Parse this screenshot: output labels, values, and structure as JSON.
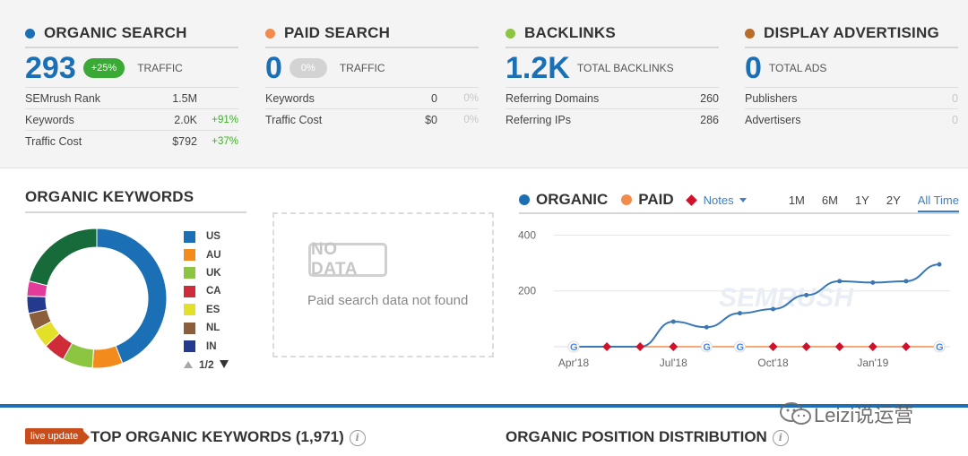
{
  "colors": {
    "organic": "#1a6fb5",
    "paid": "#f28b4b",
    "backlinks": "#8cc641",
    "display": "#b86d2c",
    "green_pill": "#3aa935",
    "grey_pill": "#d3d3d3",
    "notes": "#d0112b"
  },
  "cards": {
    "organic": {
      "title": "ORGANIC SEARCH",
      "big": "293",
      "pill": "+25%",
      "label": "TRAFFIC",
      "rows": [
        {
          "label": "SEMrush Rank",
          "value": "1.5M",
          "change": ""
        },
        {
          "label": "Keywords",
          "value": "2.0K",
          "change": "+91%"
        },
        {
          "label": "Traffic Cost",
          "value": "$792",
          "change": "+37%"
        }
      ]
    },
    "paid": {
      "title": "PAID SEARCH",
      "big": "0",
      "pill": "0%",
      "label": "TRAFFIC",
      "rows": [
        {
          "label": "Keywords",
          "value": "0",
          "change": "0%"
        },
        {
          "label": "Traffic Cost",
          "value": "$0",
          "change": "0%"
        }
      ]
    },
    "backlinks": {
      "title": "BACKLINKS",
      "big": "1.2K",
      "label": "TOTAL BACKLINKS",
      "rows": [
        {
          "label": "Referring Domains",
          "value": "260"
        },
        {
          "label": "Referring IPs",
          "value": "286"
        }
      ]
    },
    "display": {
      "title": "DISPLAY ADVERTISING",
      "big": "0",
      "label": "TOTAL ADS",
      "rows": [
        {
          "label": "Publishers",
          "value": "0"
        },
        {
          "label": "Advertisers",
          "value": "0"
        }
      ]
    }
  },
  "organic_keywords": {
    "title": "ORGANIC KEYWORDS",
    "legend": [
      {
        "label": "US",
        "color": "#1a6fb5"
      },
      {
        "label": "AU",
        "color": "#f28b1c"
      },
      {
        "label": "UK",
        "color": "#8cc641"
      },
      {
        "label": "CA",
        "color": "#cf2b38"
      },
      {
        "label": "ES",
        "color": "#e3e02a"
      },
      {
        "label": "NL",
        "color": "#8b5e3c"
      },
      {
        "label": "IN",
        "color": "#243a8f"
      }
    ],
    "pager": "1/2",
    "donut": [
      {
        "value": 44,
        "color": "#1a6fb5"
      },
      {
        "value": 7,
        "color": "#f28b1c"
      },
      {
        "value": 7,
        "color": "#8cc641"
      },
      {
        "value": 5,
        "color": "#cf2b38"
      },
      {
        "value": 4.5,
        "color": "#e3e02a"
      },
      {
        "value": 4,
        "color": "#8b5e3c"
      },
      {
        "value": 4,
        "color": "#243a8f"
      },
      {
        "value": 3.5,
        "color": "#e33b9c"
      },
      {
        "value": 21,
        "color": "#176a3a"
      }
    ]
  },
  "paid_panel": {
    "badge": "NO DATA",
    "message": "Paid search data not found"
  },
  "traffic_chart": {
    "legend_organic": "ORGANIC",
    "legend_paid": "PAID",
    "notes_label": "Notes",
    "ranges": [
      "1M",
      "6M",
      "1Y",
      "2Y",
      "All Time"
    ],
    "active_range": "All Time",
    "watermark": "SEMRUSH"
  },
  "chart_data": {
    "type": "line",
    "x": [
      "2018-04",
      "2018-05",
      "2018-06",
      "2018-07",
      "2018-08",
      "2018-09",
      "2018-10",
      "2018-11",
      "2018-12",
      "2019-01",
      "2019-02",
      "2019-03"
    ],
    "xticks": [
      "Apr'18",
      "Jul'18",
      "Oct'18",
      "Jan'19"
    ],
    "yticks": [
      200,
      400
    ],
    "ylim": [
      0,
      440
    ],
    "series": [
      {
        "name": "ORGANIC",
        "color": "#3a78b5",
        "values": [
          0,
          0,
          0,
          90,
          70,
          120,
          135,
          185,
          235,
          230,
          235,
          295
        ]
      },
      {
        "name": "PAID",
        "color": "#f28b4b",
        "values": [
          0,
          0,
          0,
          0,
          0,
          0,
          0,
          0,
          0,
          0,
          0,
          0
        ]
      }
    ]
  },
  "bottom": {
    "live_badge": "live update",
    "top_keywords_title": "TOP ORGANIC KEYWORDS (1,971)",
    "position_title": "ORGANIC POSITION DISTRIBUTION",
    "info": "i",
    "watermark_text": "Leizi说运营"
  }
}
